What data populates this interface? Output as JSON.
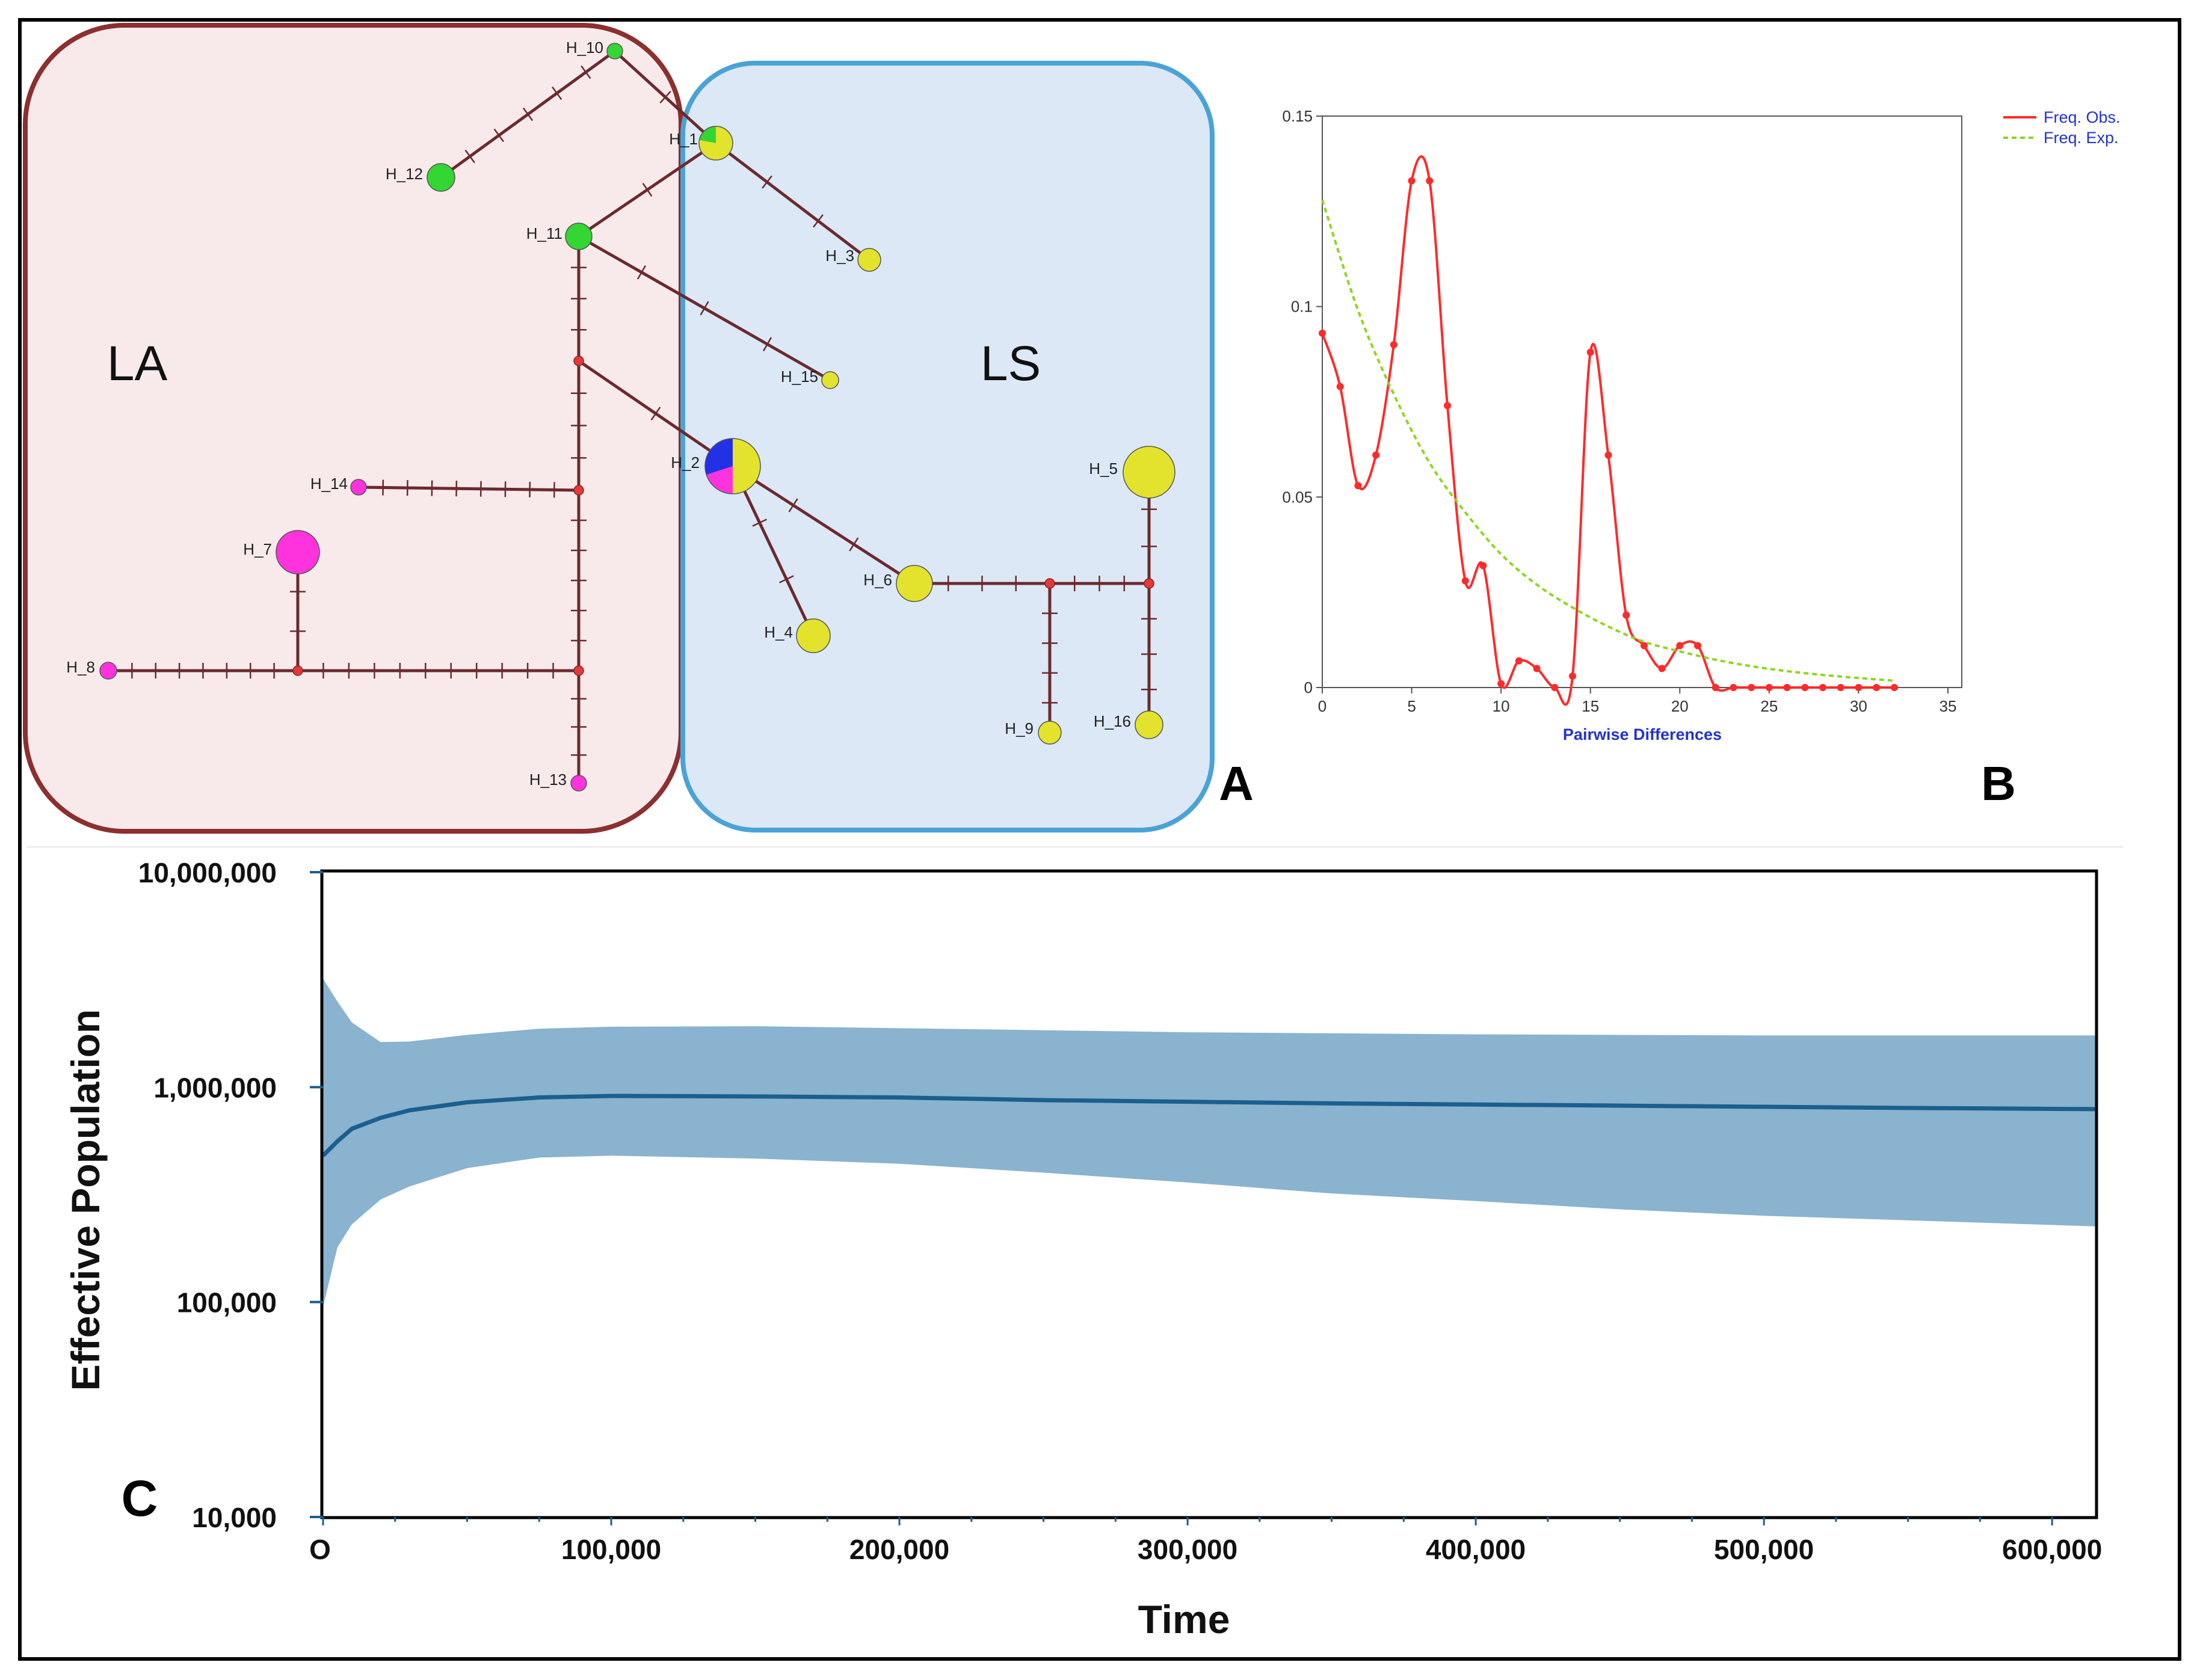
{
  "panels": {
    "a": "A",
    "b": "B",
    "c": "C"
  },
  "network": {
    "regions": [
      {
        "label": "LA",
        "fill": "#f8eaea",
        "stroke": "#8b2f2f"
      },
      {
        "label": "LS",
        "fill": "#dce8f5",
        "stroke": "#4aa3d6"
      }
    ],
    "haplotypes": [
      {
        "id": "H_1",
        "colors": [
          "#e3e32d",
          "#33d633"
        ]
      },
      {
        "id": "H_2",
        "colors": [
          "#e3e32d",
          "#ff33dd",
          "#2230e6"
        ]
      },
      {
        "id": "H_3",
        "colors": [
          "#e3e32d"
        ]
      },
      {
        "id": "H_4",
        "colors": [
          "#e3e32d"
        ]
      },
      {
        "id": "H_5",
        "colors": [
          "#e3e32d"
        ]
      },
      {
        "id": "H_6",
        "colors": [
          "#e3e32d"
        ]
      },
      {
        "id": "H_7",
        "colors": [
          "#ff33dd"
        ]
      },
      {
        "id": "H_8",
        "colors": [
          "#ff33dd"
        ]
      },
      {
        "id": "H_9",
        "colors": [
          "#e3e32d"
        ]
      },
      {
        "id": "H_10",
        "colors": [
          "#33d633"
        ]
      },
      {
        "id": "H_11",
        "colors": [
          "#33d633"
        ]
      },
      {
        "id": "H_12",
        "colors": [
          "#33d633"
        ]
      },
      {
        "id": "H_13",
        "colors": [
          "#ff33dd"
        ]
      },
      {
        "id": "H_14",
        "colors": [
          "#ff33dd"
        ]
      },
      {
        "id": "H_15",
        "colors": [
          "#e3e32d"
        ]
      },
      {
        "id": "H_16",
        "colors": [
          "#e3e32d"
        ]
      }
    ],
    "edges": [
      {
        "from": "H_10",
        "to": "H_12",
        "mutations": 5
      },
      {
        "from": "H_10",
        "to": "H_1",
        "mutations": 1
      },
      {
        "from": "H_1",
        "to": "H_3",
        "mutations": 2
      },
      {
        "from": "H_1",
        "to": "H_11",
        "mutations": 1
      },
      {
        "from": "H_11",
        "to": "H_15",
        "mutations": 3
      },
      {
        "from": "H_11",
        "to": "mv1",
        "mutations": 3
      },
      {
        "from": "mv1",
        "to": "H_2",
        "mutations": 1
      },
      {
        "from": "mv1",
        "to": "mv2",
        "mutations": 3
      },
      {
        "from": "mv2",
        "to": "H_14",
        "mutations": 8
      },
      {
        "from": "mv2",
        "to": "mv3",
        "mutations": 5
      },
      {
        "from": "mv3",
        "to": "H_13",
        "mutations": 3
      },
      {
        "from": "mv3",
        "to": "mv4",
        "mutations": 10
      },
      {
        "from": "mv4",
        "to": "H_8",
        "mutations": 7
      },
      {
        "from": "mv4",
        "to": "H_7",
        "mutations": 2
      },
      {
        "from": "H_2",
        "to": "H_4",
        "mutations": 2
      },
      {
        "from": "H_2",
        "to": "H_6",
        "mutations": 2
      },
      {
        "from": "H_6",
        "to": "mv5",
        "mutations": 3
      },
      {
        "from": "mv5",
        "to": "mv6",
        "mutations": 3
      },
      {
        "from": "mv5",
        "to": "H_9",
        "mutations": 4
      },
      {
        "from": "mv6",
        "to": "H_5",
        "mutations": 2
      },
      {
        "from": "mv6",
        "to": "H_16",
        "mutations": 3
      }
    ]
  },
  "chart_data": [
    {
      "type": "line",
      "panel": "B",
      "xlabel": "Pairwise Differences",
      "ylabel": "",
      "xlim": [
        0,
        35
      ],
      "ylim": [
        0,
        0.15
      ],
      "xticks": [
        "0",
        "5",
        "10",
        "15",
        "20",
        "25",
        "30",
        "35"
      ],
      "yticks": [
        "0",
        "0.05",
        "0.1",
        "0.15"
      ],
      "legend_position": "top-right",
      "series": [
        {
          "name": "Freq. Obs.",
          "color": "#ff2a2a",
          "x": [
            0,
            1,
            2,
            3,
            4,
            5,
            6,
            7,
            8,
            9,
            10,
            11,
            12,
            13,
            14,
            15,
            16,
            17,
            18,
            19,
            20,
            21,
            22,
            23,
            24,
            25,
            26,
            27,
            28,
            29,
            30,
            31,
            32
          ],
          "values": [
            0.093,
            0.079,
            0.053,
            0.061,
            0.09,
            0.133,
            0.133,
            0.074,
            0.028,
            0.032,
            0.001,
            0.007,
            0.005,
            0,
            0.003,
            0.088,
            0.061,
            0.019,
            0.011,
            0.005,
            0.011,
            0.011,
            0,
            0,
            0,
            0,
            0,
            0,
            0,
            0,
            0,
            0,
            0
          ]
        },
        {
          "name": "Freq. Exp.",
          "color": "#8fd61f",
          "x": [
            0,
            2,
            4,
            6,
            8,
            10,
            12,
            14,
            16,
            18,
            20,
            22,
            24,
            26,
            28,
            30,
            32
          ],
          "values": [
            0.128,
            0.099,
            0.077,
            0.059,
            0.046,
            0.035,
            0.027,
            0.021,
            0.016,
            0.012,
            0.0095,
            0.0073,
            0.0056,
            0.0043,
            0.0033,
            0.0025,
            0.0018
          ]
        }
      ]
    },
    {
      "type": "area",
      "panel": "C",
      "xlabel": "Time",
      "ylabel": "Effective Population",
      "xlim": [
        0,
        615000
      ],
      "ylim": [
        10000,
        10000000
      ],
      "yscale": "log",
      "xticks": [
        "O",
        "100,000",
        "200,000",
        "300,000",
        "400,000",
        "500,000",
        "600,000"
      ],
      "yticks": [
        "10,000",
        "100,000",
        "1,000,000",
        "10,000,000"
      ],
      "series": [
        {
          "name": "median",
          "color": "#1a5f8f",
          "x": [
            0,
            5000,
            10000,
            20000,
            30000,
            50000,
            75000,
            100000,
            150000,
            200000,
            250000,
            300000,
            350000,
            400000,
            450000,
            500000,
            550000,
            615000
          ],
          "values": [
            480000,
            560000,
            640000,
            720000,
            780000,
            850000,
            895000,
            910000,
            905000,
            895000,
            870000,
            855000,
            840000,
            830000,
            820000,
            810000,
            800000,
            790000
          ]
        },
        {
          "name": "95% HPD upper",
          "color": "#8ab3cf",
          "x": [
            0,
            5000,
            10000,
            20000,
            30000,
            50000,
            75000,
            100000,
            150000,
            200000,
            250000,
            300000,
            350000,
            400000,
            450000,
            500000,
            550000,
            615000
          ],
          "values": [
            3200000,
            2500000,
            2000000,
            1620000,
            1630000,
            1750000,
            1870000,
            1910000,
            1920000,
            1880000,
            1840000,
            1800000,
            1780000,
            1760000,
            1750000,
            1740000,
            1740000,
            1740000
          ]
        },
        {
          "name": "95% HPD lower",
          "color": "#8ab3cf",
          "x": [
            0,
            5000,
            10000,
            20000,
            30000,
            50000,
            75000,
            100000,
            150000,
            200000,
            250000,
            300000,
            350000,
            400000,
            450000,
            500000,
            550000,
            615000
          ],
          "values": [
            95000,
            180000,
            230000,
            300000,
            345000,
            420000,
            470000,
            480000,
            465000,
            440000,
            400000,
            360000,
            320000,
            295000,
            270000,
            252000,
            240000,
            225000
          ]
        }
      ]
    }
  ]
}
